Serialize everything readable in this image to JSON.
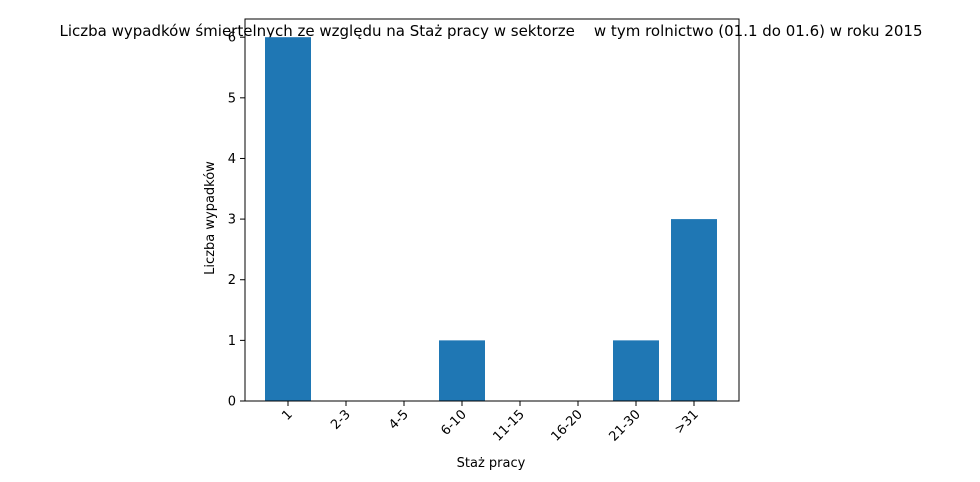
{
  "chart_data": {
    "type": "bar",
    "title": "Liczba wypadków śmiertelnych ze względu na Staż pracy w sektorze    w tym rolnictwo (01.1 do 01.6) w roku 2015",
    "xlabel": "Staż pracy",
    "ylabel": "Liczba wypadków",
    "categories": [
      "1",
      "2-3",
      "4-5",
      "6-10",
      "11-15",
      "16-20",
      "21-30",
      ">31"
    ],
    "values": [
      6,
      0,
      0,
      1,
      0,
      0,
      1,
      3
    ],
    "ylim": [
      0,
      6.3
    ],
    "yticks": [
      0,
      1,
      2,
      3,
      4,
      5,
      6
    ],
    "bar_color": "#1f77b4",
    "grid": false,
    "legend": "none"
  }
}
